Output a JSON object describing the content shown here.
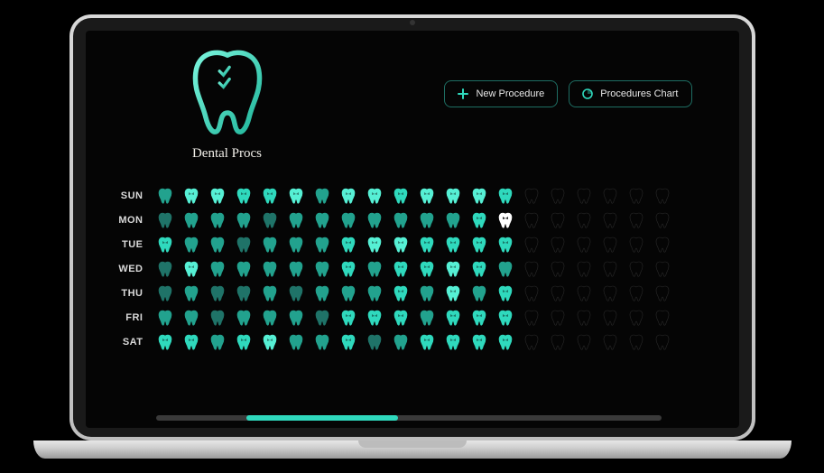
{
  "brand": {
    "title": "Dental Procs"
  },
  "buttons": {
    "new_procedure": "New Procedure",
    "procedures_chart": "Procedures Chart"
  },
  "colors": {
    "accent": "#2fd9bd",
    "screen_bg": "#050505",
    "button_border": "#1e6e63",
    "text": "#e8e8e8",
    "day_label": "#d9d9d9",
    "scrollbar_track": "#3a3a3a",
    "level_colors": {
      "0": "#2a2a2a",
      "1": "#1e4a44",
      "2": "#1f7368",
      "3": "#22a28e",
      "4": "#2fd9bd",
      "5": "#56f0d5",
      "highlight": "#ffffff"
    }
  },
  "grid": {
    "columns": 20,
    "days": [
      "SUN",
      "MON",
      "TUE",
      "WED",
      "THU",
      "FRI",
      "SAT"
    ],
    "rows": {
      "SUN": [
        3,
        5,
        5,
        4,
        4,
        5,
        3,
        5,
        5,
        4,
        5,
        5,
        5,
        4,
        0,
        0,
        0,
        0,
        0,
        0
      ],
      "MON": [
        2,
        3,
        3,
        3,
        2,
        3,
        3,
        3,
        3,
        3,
        3,
        3,
        4,
        "H",
        0,
        0,
        0,
        0,
        0,
        0
      ],
      "TUE": [
        4,
        3,
        3,
        2,
        3,
        3,
        3,
        4,
        5,
        5,
        4,
        4,
        4,
        4,
        0,
        0,
        0,
        0,
        0,
        0
      ],
      "WED": [
        2,
        5,
        3,
        3,
        3,
        3,
        3,
        4,
        3,
        4,
        4,
        5,
        4,
        3,
        0,
        0,
        0,
        0,
        0,
        0
      ],
      "THU": [
        2,
        3,
        2,
        2,
        3,
        2,
        3,
        3,
        3,
        4,
        3,
        5,
        3,
        4,
        0,
        0,
        0,
        0,
        0,
        0
      ],
      "FRI": [
        3,
        3,
        2,
        3,
        3,
        3,
        2,
        4,
        4,
        4,
        3,
        4,
        4,
        4,
        0,
        0,
        0,
        0,
        0,
        0
      ],
      "SAT": [
        4,
        4,
        3,
        4,
        5,
        3,
        3,
        4,
        2,
        3,
        4,
        4,
        4,
        4,
        0,
        0,
        0,
        0,
        0,
        0
      ]
    }
  },
  "scrollbar": {
    "thumb_left_pct": 18,
    "thumb_width_pct": 30,
    "thumb_color": "#2fd9bd"
  }
}
